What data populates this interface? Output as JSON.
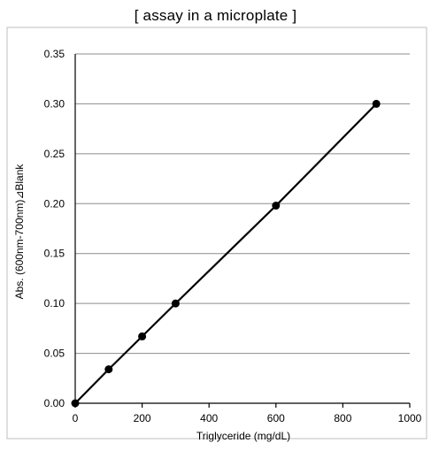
{
  "chart_data": {
    "type": "line",
    "title": "[ assay in a microplate ]",
    "xlabel": "Triglyceride (mg/dL)",
    "ylabel": "Abs. (600nm-700nm)⊿Blank",
    "xlim": [
      0,
      1000
    ],
    "ylim": [
      0,
      0.35
    ],
    "xticks": [
      0,
      200,
      400,
      600,
      800,
      1000
    ],
    "yticks": [
      "0.00",
      "0.05",
      "0.10",
      "0.15",
      "0.20",
      "0.25",
      "0.30",
      "0.35"
    ],
    "grid": "horizontal",
    "series": [
      {
        "x": [
          0,
          100,
          200,
          300,
          600,
          900
        ],
        "y": [
          0.0,
          0.034,
          0.067,
          0.1,
          0.198,
          0.3
        ]
      }
    ]
  }
}
